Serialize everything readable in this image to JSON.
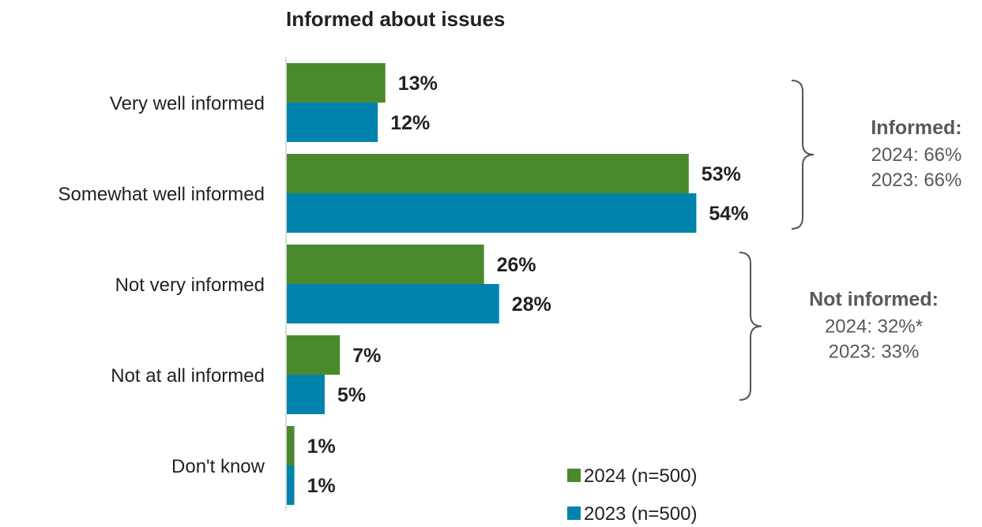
{
  "chart_data": {
    "type": "bar",
    "orientation": "horizontal",
    "title": "Informed about issues",
    "categories": [
      "Very well informed",
      "Somewhat well informed",
      "Not very informed",
      "Not at all informed",
      "Don't know"
    ],
    "series": [
      {
        "name": "2024 (n=500)",
        "color": "#4a8a2c",
        "values": [
          13,
          53,
          26,
          7,
          1
        ],
        "labels": [
          "13%",
          "53%",
          "26%",
          "7%",
          "1%"
        ]
      },
      {
        "name": "2023 (n=500)",
        "color": "#0084ad",
        "values": [
          12,
          54,
          28,
          5,
          1
        ],
        "labels": [
          "12%",
          "54%",
          "28%",
          "5%",
          "1%"
        ]
      }
    ],
    "xlim": [
      0,
      60
    ],
    "grid": false,
    "legend_position": "bottom-right",
    "groups": [
      {
        "title": "Informed:",
        "lines": [
          "2024: 66%",
          "2023: 66%"
        ],
        "categories": [
          0,
          1
        ]
      },
      {
        "title": "Not informed:",
        "lines": [
          "2024: 32%*",
          "2023: 33%"
        ],
        "categories": [
          2,
          3
        ]
      }
    ]
  }
}
